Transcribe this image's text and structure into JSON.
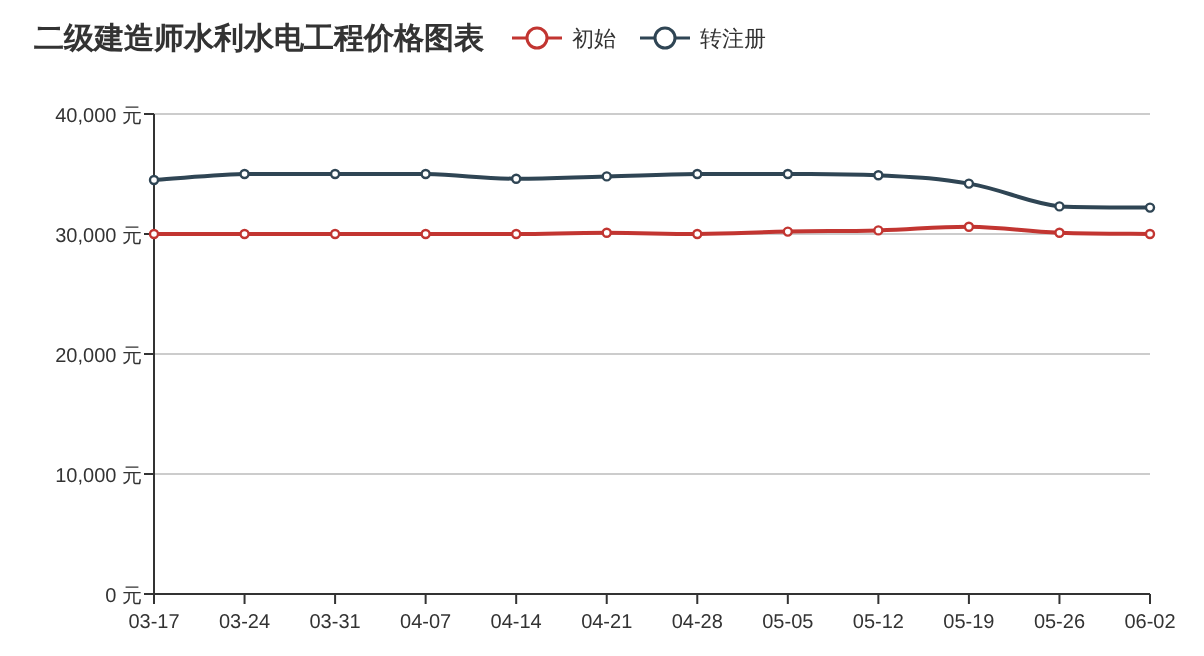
{
  "chart_data": {
    "type": "line",
    "title": "二级建造师水利水电工程价格图表",
    "categories": [
      "03-17",
      "03-24",
      "03-31",
      "04-07",
      "04-14",
      "04-21",
      "04-28",
      "05-05",
      "05-12",
      "05-19",
      "05-26",
      "06-02"
    ],
    "series": [
      {
        "name": "初始",
        "color": "#c23531",
        "values": [
          30000,
          30000,
          30000,
          30000,
          30000,
          30100,
          30000,
          30200,
          30300,
          30600,
          30100,
          30000
        ]
      },
      {
        "name": "转注册",
        "color": "#2f4554",
        "values": [
          34500,
          35000,
          35000,
          35000,
          34600,
          34800,
          35000,
          35000,
          34900,
          34200,
          32300,
          32200
        ]
      }
    ],
    "ylim": [
      0,
      40000
    ],
    "yticks": [
      {
        "value": 0,
        "label": "0 元"
      },
      {
        "value": 10000,
        "label": "10,000 元"
      },
      {
        "value": 20000,
        "label": "20,000 元"
      },
      {
        "value": 30000,
        "label": "30,000 元"
      },
      {
        "value": 40000,
        "label": "40,000 元"
      }
    ],
    "grid": "y",
    "legend": "top",
    "marker": "circle",
    "line_style": "solid"
  }
}
